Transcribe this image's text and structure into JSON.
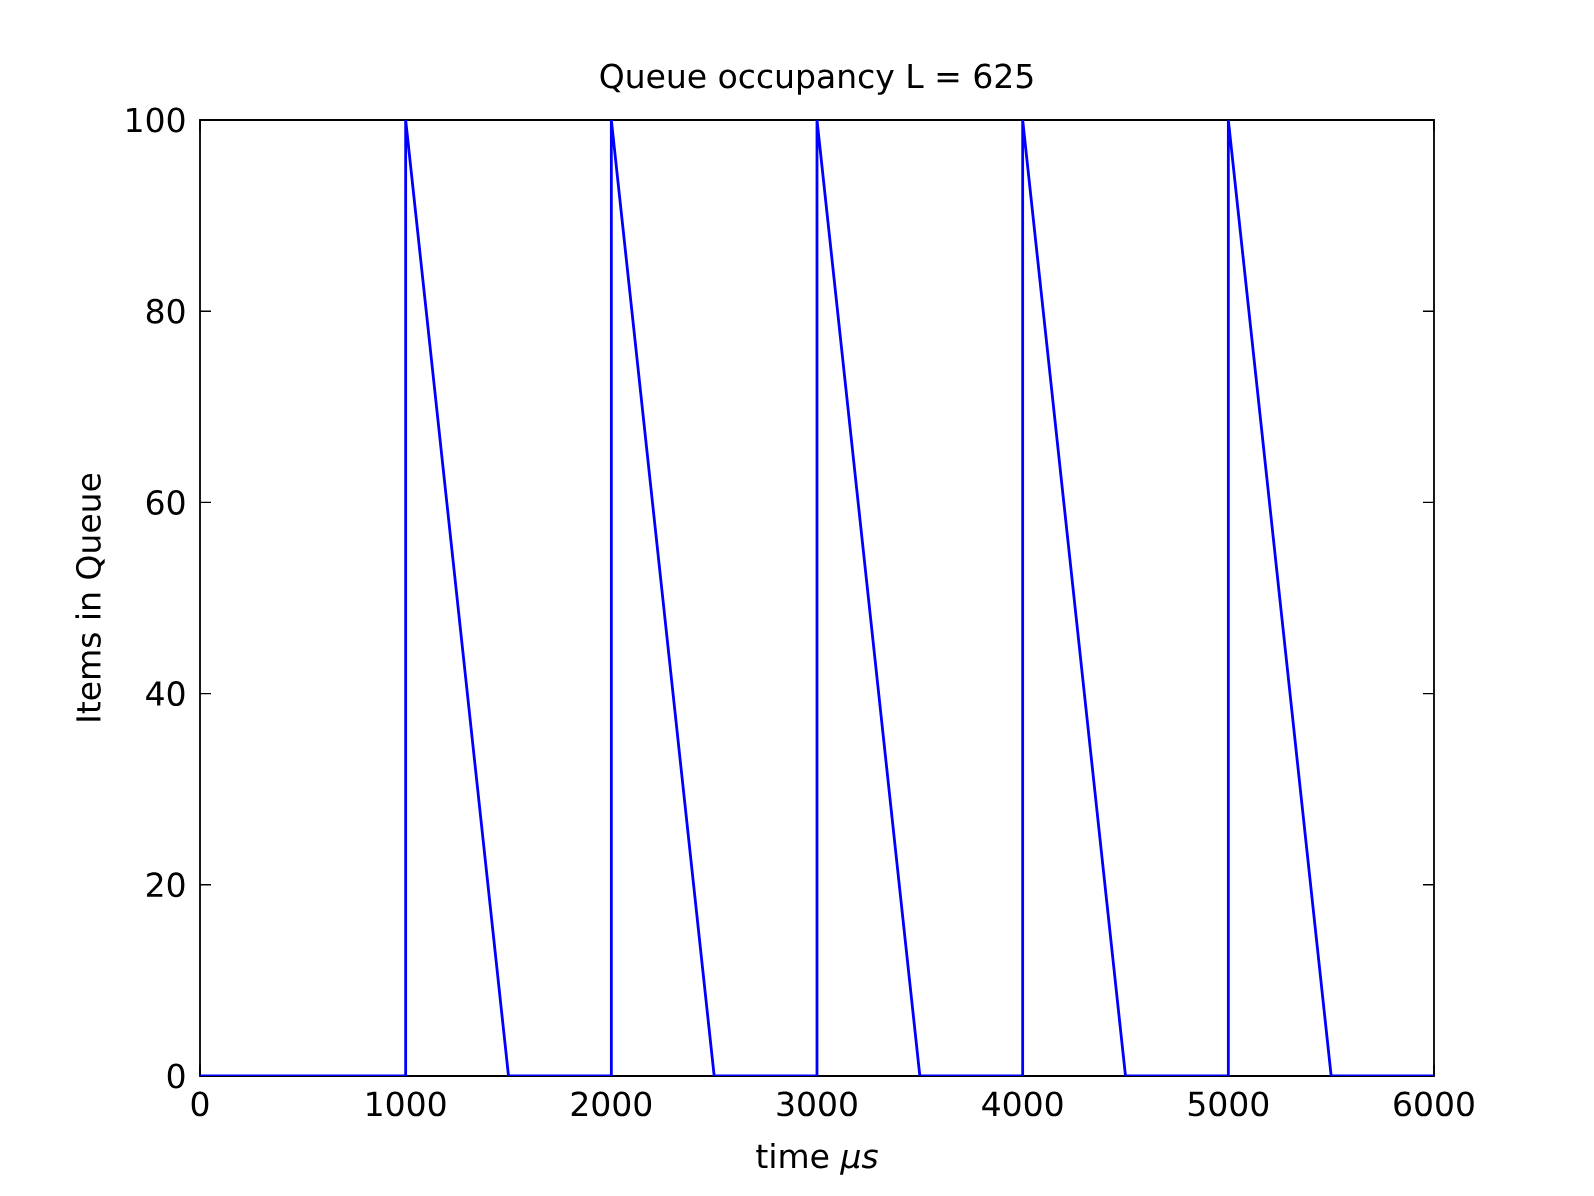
{
  "chart_data": {
    "type": "line",
    "title": "Queue occupancy L = 625",
    "xlabel": "time *μs*",
    "ylabel": "Items in Queue",
    "x": [
      0,
      1000,
      1000,
      1500,
      2000,
      2000,
      2500,
      3000,
      3000,
      3500,
      4000,
      4000,
      4500,
      5000,
      5000,
      5500,
      6000
    ],
    "series": [
      {
        "color": "#0000ff",
        "values": [
          0,
          0,
          100,
          0,
          0,
          100,
          0,
          0,
          100,
          0,
          0,
          100,
          0,
          0,
          100,
          0,
          0
        ]
      }
    ],
    "xlim": [
      0,
      6000
    ],
    "ylim": [
      0,
      100
    ],
    "xticks": [
      0,
      1000,
      2000,
      3000,
      4000,
      5000,
      6000
    ],
    "yticks": [
      0,
      20,
      40,
      60,
      80,
      100
    ]
  }
}
